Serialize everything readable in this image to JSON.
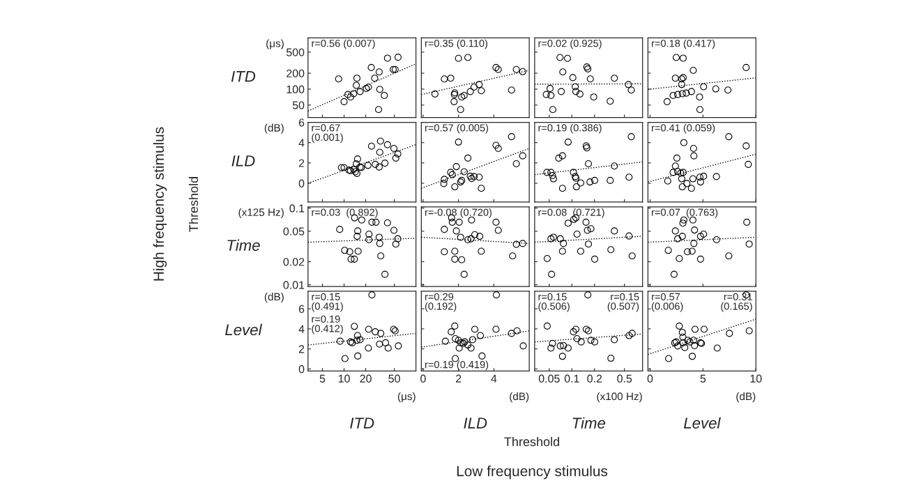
{
  "chart_data": [
    {
      "type": "scatter",
      "log": "xy",
      "tick_labels": "y",
      "ylabel": "ITD",
      "xlim": [
        3.15,
        100
      ],
      "xticks": [
        5,
        10,
        20,
        50
      ],
      "ylim": [
        29,
        930
      ],
      "yticks": [
        50,
        100,
        200,
        500
      ],
      "annotations": [
        "r=0.56 (0.007)",
        "(μs)"
      ],
      "series": [
        {
          "type": "scatter",
          "marker": "circle",
          "color": "#000000",
          "x": [
            8.4,
            10,
            11.3,
            12.3,
            13.6,
            15.1,
            14.8,
            16.7,
            20.4,
            21.8,
            23.9,
            26.7,
            30.8,
            31.4,
            36.3,
            30.2,
            40.2,
            56.4,
            48.3,
            51.4
          ],
          "values": [
            156,
            58,
            79,
            71,
            82,
            161,
            118,
            90,
            103,
            109,
            256,
            161,
            211,
            99,
            76,
            41,
            385,
            401,
            235,
            235
          ]
        },
        {
          "type": "line",
          "line_style": "dotted",
          "color": "#000000",
          "x": [
            3.15,
            100
          ],
          "values": [
            38.6,
            301
          ]
        }
      ]
    },
    {
      "type": "scatter",
      "log": "y",
      "tick_labels": false,
      "xlim": [
        -0.1,
        6
      ],
      "xticks": [
        0,
        2,
        4
      ],
      "ylim": [
        29,
        930
      ],
      "yticks": [
        50,
        100,
        200,
        500
      ],
      "annotations": [
        "r=0.35 (0.110)"
      ],
      "series": [
        {
          "type": "scatter",
          "marker": "circle",
          "color": "#000000",
          "x": [
            0.67,
            1.2,
            1.56,
            1.77,
            1.79,
            1.75,
            2.0,
            2.12,
            2.18,
            2.32,
            2.53,
            2.67,
            2.88,
            3.17,
            3.29,
            4.12,
            4.25,
            5.0,
            5.27,
            5.63
          ],
          "values": [
            81,
            156,
            161,
            79,
            85,
            58,
            381,
            41,
            71,
            76,
            396,
            90,
            109,
            122,
            93,
            256,
            235,
            96,
            235,
            214
          ]
        },
        {
          "type": "line",
          "line_style": "dotted",
          "color": "#000000",
          "x": [
            -0.1,
            6
          ],
          "values": [
            79,
            226
          ]
        }
      ]
    },
    {
      "type": "scatter",
      "log": "xy",
      "tick_labels": false,
      "xlim": [
        0.032,
        0.87
      ],
      "xticks": [
        0.05,
        0.1,
        0.2,
        0.5
      ],
      "ylim": [
        29,
        930
      ],
      "yticks": [
        50,
        100,
        200,
        500
      ],
      "annotations": [
        "r=0.02 (0.925)"
      ],
      "series": [
        {
          "type": "scatter",
          "marker": "circle",
          "color": "#000000",
          "x": [
            0.0695,
            0.0875,
            0.0758,
            0.103,
            0.158,
            0.163,
            0.176,
            0.0513,
            0.0527,
            0.0457,
            0.0723,
            0.111,
            0.113,
            0.128,
            0.195,
            0.323,
            0.367,
            0.564,
            0.616,
            0.0558
          ],
          "values": [
            396,
            381,
            211,
            165,
            262,
            241,
            156,
            103,
            76,
            79,
            90,
            111,
            90,
            81,
            71,
            59,
            161,
            122,
            96,
            41
          ]
        },
        {
          "type": "line",
          "line_style": "dotted",
          "color": "#000000",
          "x": [
            0.032,
            0.87
          ],
          "values": [
            124,
            126
          ]
        }
      ]
    },
    {
      "type": "scatter",
      "log": "y",
      "tick_labels": false,
      "xlim": [
        -0.2,
        10
      ],
      "xticks": [
        0,
        5,
        10
      ],
      "ylim": [
        29,
        930
      ],
      "yticks": [
        50,
        100,
        200,
        500
      ],
      "annotations": [
        "r=0.18 (0.417)"
      ],
      "series": [
        {
          "type": "scatter",
          "marker": "circle",
          "color": "#000000",
          "x": [
            2.47,
            3.13,
            4.08,
            2.39,
            2.99,
            3.13,
            2.99,
            1.61,
            2.18,
            2.61,
            3.05,
            3.42,
            3.91,
            4.68,
            5.06,
            4.71,
            6.21,
            7.36,
            9.08
          ],
          "values": [
            396,
            385,
            226,
            161,
            156,
            165,
            122,
            58,
            76,
            79,
            82,
            84,
            90,
            71,
            111,
            41,
            101,
            96,
            256
          ]
        },
        {
          "type": "line",
          "line_style": "dotted",
          "color": "#000000",
          "x": [
            -0.2,
            10
          ],
          "values": [
            99,
            163
          ]
        }
      ]
    },
    {
      "type": "scatter",
      "log": "x",
      "tick_labels": "y",
      "ylabel": "ILD",
      "xlim": [
        3.15,
        100
      ],
      "xticks": [
        5,
        10,
        20,
        50
      ],
      "ylim": [
        -1.85,
        6
      ],
      "yticks": [
        0,
        2,
        4,
        6
      ],
      "annotations": [
        "r=0.67\n(0.001)",
        "(dB)",
        "High frequency stimulus",
        "Threshold"
      ],
      "series": [
        {
          "type": "scatter",
          "marker": "circle",
          "color": "#000000",
          "x": [
            9.2,
            10,
            11.7,
            12.3,
            13.6,
            14.3,
            15.1,
            15.4,
            14.8,
            16.7,
            17.4,
            21.5,
            24.1,
            27.2,
            30.8,
            31.4,
            32.1,
            37.0,
            40.2,
            49.4,
            52.5,
            55.9
          ],
          "values": [
            1.54,
            1.54,
            1.29,
            1.23,
            1.38,
            1.13,
            0.97,
            2.39,
            1.92,
            1.6,
            1.54,
            1.76,
            3.65,
            1.86,
            1.6,
            3.05,
            4.15,
            1.98,
            3.8,
            3.43,
            2.48,
            2.89
          ]
        },
        {
          "type": "line",
          "line_style": "dotted",
          "color": "#000000",
          "x": [
            3.15,
            100
          ],
          "values": [
            0,
            3.8
          ]
        }
      ]
    },
    {
      "type": "scatter",
      "tick_labels": false,
      "xlim": [
        -0.1,
        6
      ],
      "xticks": [
        0,
        2,
        4
      ],
      "ylim": [
        -1.85,
        6
      ],
      "yticks": [
        0,
        2,
        4,
        6
      ],
      "annotations": [
        "r=0.57 (0.005)"
      ],
      "series": [
        {
          "type": "scatter",
          "marker": "circle",
          "color": "#000000",
          "x": [
            1.2,
            1.17,
            1.56,
            1.65,
            1.79,
            1.88,
            2.0,
            2.12,
            2.18,
            2.32,
            2.53,
            2.67,
            2.74,
            2.88,
            3.17,
            3.29,
            4.12,
            4.25,
            5.0,
            5.27,
            5.63
          ],
          "values": [
            0.38,
            -0.03,
            1.07,
            0.85,
            -0.35,
            1.64,
            4.06,
            0.13,
            0.28,
            1.13,
            2.48,
            0.69,
            0.47,
            0.66,
            0.6,
            -0.5,
            3.74,
            3.43,
            4.59,
            1.92,
            2.7
          ]
        },
        {
          "type": "line",
          "line_style": "dotted",
          "color": "#000000",
          "x": [
            -0.1,
            6
          ],
          "values": [
            -0.5,
            3.43
          ]
        }
      ]
    },
    {
      "type": "scatter",
      "log": "x",
      "tick_labels": false,
      "xlim": [
        0.032,
        0.87
      ],
      "xticks": [
        0.05,
        0.1,
        0.2,
        0.5
      ],
      "ylim": [
        -1.85,
        6
      ],
      "yticks": [
        0,
        2,
        4,
        6
      ],
      "annotations": [
        "r=0.19 (0.386)"
      ],
      "series": [
        {
          "type": "scatter",
          "marker": "circle",
          "color": "#000000",
          "x": [
            0.0466,
            0.0527,
            0.0553,
            0.057,
            0.0669,
            0.075,
            0.0892,
            0.105,
            0.111,
            0.113,
            0.115,
            0.131,
            0.155,
            0.158,
            0.166,
            0.174,
            0.201,
            0.323,
            0.367,
            0.575,
            0.616,
            0.075
          ],
          "values": [
            1.07,
            1.07,
            0.75,
            0.44,
            2.48,
            2.7,
            4.06,
            1.07,
            0.66,
            0.5,
            -0.35,
            0.03,
            3.68,
            3.49,
            1.92,
            0.13,
            0.28,
            0.28,
            1.7,
            0.6,
            4.59,
            -0.5
          ]
        },
        {
          "type": "line",
          "line_style": "dotted",
          "color": "#000000",
          "x": [
            0.032,
            0.87
          ],
          "values": [
            0.85,
            2.1
          ]
        }
      ]
    },
    {
      "type": "scatter",
      "tick_labels": false,
      "xlim": [
        -0.2,
        10
      ],
      "xticks": [
        0,
        5,
        10
      ],
      "ylim": [
        -1.85,
        6
      ],
      "yticks": [
        0,
        2,
        4,
        6
      ],
      "annotations": [
        "r=0.41 (0.059)"
      ],
      "series": [
        {
          "type": "scatter",
          "marker": "circle",
          "color": "#000000",
          "x": [
            1.67,
            2.39,
            2.53,
            2.18,
            2.61,
            2.9,
            3.13,
            3.19,
            2.99,
            3.05,
            3.48,
            3.91,
            4.05,
            4.11,
            4.14,
            4.71,
            5.06,
            4.77,
            6.27,
            7.44,
            9.08,
            9.28
          ],
          "values": [
            0.22,
            1.7,
            2.48,
            1.07,
            1.16,
            1.0,
            1.07,
            4.0,
            0.44,
            -0.35,
            -0.03,
            -0.5,
            0.44,
            3.43,
            2.7,
            0.6,
            0.69,
            0.13,
            0.66,
            4.59,
            3.68,
            1.86
          ]
        },
        {
          "type": "line",
          "line_style": "dotted",
          "color": "#000000",
          "x": [
            -0.2,
            10
          ],
          "values": [
            0.13,
            2.86
          ]
        }
      ]
    },
    {
      "type": "scatter",
      "log": "xy",
      "tick_labels": "y",
      "ylabel": "Time",
      "xlim": [
        3.15,
        100
      ],
      "xticks": [
        5,
        10,
        20,
        50
      ],
      "ylim": [
        0.0095,
        0.104
      ],
      "yticks": [
        0.01,
        0.02,
        0.05,
        0.1
      ],
      "annotations": [
        "r=0.03  (0.892)",
        "(x125 Hz)"
      ],
      "series": [
        {
          "type": "scatter",
          "marker": "circle",
          "color": "#000000",
          "x": [
            8.7,
            10.2,
            12.0,
            15.7,
            12.5,
            13.9,
            14.0,
            15.5,
            15.2,
            17.6,
            22.2,
            22.2,
            24.4,
            27.8,
            30.8,
            31.4,
            40.2,
            49.4,
            52.5,
            55.9,
            32.4,
            37.0
          ],
          "values": [
            0.0528,
            0.0281,
            0.027,
            0.0274,
            0.0216,
            0.0216,
            0.0747,
            0.0504,
            0.0429,
            0.07,
            0.0458,
            0.0387,
            0.0655,
            0.0655,
            0.0417,
            0.0346,
            0.0643,
            0.0513,
            0.034,
            0.0398,
            0.0238,
            0.0137
          ]
        },
        {
          "type": "line",
          "line_style": "dotted",
          "color": "#000000",
          "x": [
            3.15,
            100
          ],
          "values": [
            0.0359,
            0.0405
          ]
        }
      ]
    },
    {
      "type": "scatter",
      "log": "y",
      "tick_labels": false,
      "xlim": [
        -0.1,
        6
      ],
      "xticks": [
        0,
        2,
        4
      ],
      "ylim": [
        0.0095,
        0.104
      ],
      "yticks": [
        0.01,
        0.02,
        0.05,
        0.1
      ],
      "annotations": [
        "r=-0.08 (0.720)"
      ],
      "series": [
        {
          "type": "scatter",
          "marker": "circle",
          "color": "#000000",
          "x": [
            1.2,
            1.65,
            1.88,
            1.61,
            2.04,
            1.79,
            1.79,
            2.18,
            2.12,
            2.32,
            2.53,
            2.71,
            2.74,
            2.92,
            3.2,
            3.29,
            4.12,
            4.25,
            5.06,
            5.27,
            5.63,
            1.2
          ],
          "values": [
            0.0528,
            0.0655,
            0.0504,
            0.0747,
            0.0655,
            0.0274,
            0.0216,
            0.0212,
            0.0417,
            0.0137,
            0.0387,
            0.0398,
            0.07,
            0.045,
            0.0429,
            0.0274,
            0.0655,
            0.0513,
            0.0238,
            0.0337,
            0.0346,
            0.027
          ]
        },
        {
          "type": "line",
          "line_style": "dotted",
          "color": "#000000",
          "x": [
            -0.1,
            6
          ],
          "values": [
            0.0417,
            0.0346
          ]
        }
      ]
    },
    {
      "type": "scatter",
      "log": "xy",
      "tick_labels": false,
      "xlim": [
        0.032,
        0.87
      ],
      "xticks": [
        0.05,
        0.1,
        0.2,
        0.5
      ],
      "ylim": [
        0.0095,
        0.104
      ],
      "yticks": [
        0.01,
        0.02,
        0.05,
        0.1
      ],
      "annotations": [
        "r=0.08  (0.721)"
      ],
      "series": [
        {
          "type": "scatter",
          "marker": "circle",
          "color": "#000000",
          "x": [
            0.047,
            0.0537,
            0.0527,
            0.057,
            0.0702,
            0.0773,
            0.075,
            0.0892,
            0.106,
            0.113,
            0.117,
            0.131,
            0.154,
            0.161,
            0.166,
            0.179,
            0.201,
            0.33,
            0.367,
            0.575,
            0.632
          ],
          "values": [
            0.022,
            0.0137,
            0.0398,
            0.0417,
            0.0398,
            0.0346,
            0.0274,
            0.0637,
            0.0713,
            0.0747,
            0.0458,
            0.0274,
            0.0655,
            0.0513,
            0.034,
            0.0538,
            0.0216,
            0.0287,
            0.0504,
            0.0433,
            0.0238
          ]
        },
        {
          "type": "line",
          "line_style": "dotted",
          "color": "#000000",
          "x": [
            0.032,
            0.87
          ],
          "values": [
            0.0359,
            0.043
          ]
        }
      ]
    },
    {
      "type": "scatter",
      "log": "y",
      "tick_labels": false,
      "xlim": [
        -0.2,
        10
      ],
      "xticks": [
        0,
        5,
        10
      ],
      "ylim": [
        0.0095,
        0.104
      ],
      "yticks": [
        0.01,
        0.02,
        0.05,
        0.1
      ],
      "annotations": [
        "r=0.07  (0.763)"
      ],
      "series": [
        {
          "type": "scatter",
          "marker": "circle",
          "color": "#000000",
          "x": [
            1.72,
            2.39,
            2.76,
            2.61,
            3.05,
            3.1,
            3.19,
            3.53,
            3.97,
            4.05,
            4.14,
            4.2,
            4.77,
            5.06,
            4.77,
            2.27,
            6.29,
            7.44,
            9.14,
            9.37
          ],
          "values": [
            0.0281,
            0.0504,
            0.022,
            0.0398,
            0.0429,
            0.0637,
            0.07,
            0.027,
            0.0274,
            0.07,
            0.0346,
            0.0518,
            0.0429,
            0.0458,
            0.0216,
            0.0137,
            0.0387,
            0.0238,
            0.0655,
            0.034
          ]
        },
        {
          "type": "line",
          "line_style": "dotted",
          "color": "#000000",
          "x": [
            -0.2,
            10
          ],
          "values": [
            0.0359,
            0.0417
          ]
        }
      ]
    },
    {
      "type": "scatter",
      "log": "x",
      "ylabel": "Level",
      "xlabel": "ITD",
      "xlim": [
        3.15,
        100
      ],
      "xticks": [
        5,
        10,
        20,
        50
      ],
      "ylim": [
        -0.2,
        7.75
      ],
      "yticks": [
        0,
        2,
        4,
        6
      ],
      "annotations": [
        "r=0.15\n(0.491)",
        "r=0.19\n(0.412)",
        "(dB)",
        "(μs)"
      ],
      "series": [
        {
          "type": "scatter",
          "marker": "circle",
          "color": "#000000",
          "x": [
            10.3,
            8.8,
            12.3,
            13.0,
            13.9,
            15.4,
            15.1,
            16.7,
            15.5,
            21.8,
            22.0,
            27.2,
            32.4,
            31.1,
            37.8,
            41.1,
            48.9,
            51.4,
            56.9,
            24.4
          ],
          "values": [
            1.04,
            2.77,
            2.7,
            2.61,
            4.25,
            3.33,
            2.86,
            2.92,
            1.29,
            2.08,
            3.96,
            3.71,
            3.55,
            2.48,
            2.61,
            2.08,
            3.96,
            3.8,
            2.3,
            7.39
          ]
        },
        {
          "type": "line",
          "line_style": "dotted",
          "color": "#000000",
          "x": [
            3.15,
            100
          ],
          "values": [
            2.39,
            3.55
          ]
        }
      ]
    },
    {
      "type": "scatter",
      "tick_labels": "x",
      "xlabel": "ILD",
      "xlim": [
        -0.1,
        6
      ],
      "xticks": [
        0,
        2,
        4
      ],
      "ylim": [
        -0.2,
        7.75
      ],
      "yticks": [
        0,
        2,
        4,
        6
      ],
      "annotations": [
        "r=0.29\n(0.192)",
        "r=0.19 (0.419)",
        "(dB)",
        "Threshold",
        "Low frequency stimulus"
      ],
      "series": [
        {
          "type": "scatter",
          "marker": "circle",
          "color": "#000000",
          "x": [
            1.26,
            1.59,
            1.79,
            1.82,
            2.0,
            2.04,
            2.14,
            2.27,
            2.35,
            2.53,
            2.71,
            2.8,
            2.92,
            3.24,
            3.33,
            1.82,
            4.12,
            4.14,
            5.0,
            5.31,
            5.66
          ],
          "values": [
            2.77,
            3.71,
            4.28,
            3.02,
            2.86,
            2.08,
            2.61,
            2.55,
            2.7,
            2.39,
            2.08,
            2.92,
            3.96,
            3.33,
            1.29,
            1.04,
            3.96,
            7.39,
            3.55,
            3.8,
            2.3
          ]
        },
        {
          "type": "line",
          "line_style": "dotted",
          "color": "#000000",
          "x": [
            -0.1,
            6
          ],
          "values": [
            2.17,
            3.8
          ]
        }
      ]
    },
    {
      "type": "scatter",
      "log": "x",
      "tick_labels": "x",
      "xlabel": "Time",
      "xlim": [
        0.032,
        0.87
      ],
      "xticks": [
        0.05,
        0.1,
        0.2,
        0.5
      ],
      "ylim": [
        -0.2,
        7.75
      ],
      "yticks": [
        0,
        2,
        4,
        6
      ],
      "annotations": [
        "r=0.15\n(0.506)",
        "r=0.15\n(0.507)",
        "(x100 Hz)"
      ],
      "series": [
        {
          "type": "scatter",
          "marker": "circle",
          "color": "#000000",
          "x": [
            0.047,
            0.0553,
            0.0527,
            0.0702,
            0.0773,
            0.075,
            0.0892,
            0.105,
            0.113,
            0.117,
            0.133,
            0.155,
            0.166,
            0.163,
            0.179,
            0.201,
            0.367,
            0.33,
            0.575,
            0.632
          ],
          "values": [
            4.28,
            2.55,
            2.08,
            2.3,
            2.33,
            1.26,
            2.08,
            3.71,
            3.96,
            3.02,
            2.7,
            3.96,
            3.8,
            7.39,
            2.86,
            2.7,
            2.92,
            1.07,
            3.33,
            3.55
          ]
        },
        {
          "type": "line",
          "line_style": "dotted",
          "color": "#000000",
          "x": [
            0.032,
            0.87
          ],
          "values": [
            2.7,
            3.49
          ]
        }
      ]
    },
    {
      "type": "scatter",
      "tick_labels": "x",
      "xlabel": "Level",
      "xlim": [
        -0.2,
        10
      ],
      "xticks": [
        0,
        5,
        10
      ],
      "ylim": [
        -0.2,
        7.75
      ],
      "yticks": [
        0,
        2,
        4,
        6
      ],
      "annotations": [
        "r=0.57\n(0.006)",
        "r=0.31\n(0.165)",
        "(dB)"
      ],
      "series": [
        {
          "type": "scatter",
          "marker": "circle",
          "color": "#000000",
          "x": [
            1.75,
            2.33,
            2.47,
            2.61,
            2.76,
            3.05,
            3.1,
            3.13,
            3.28,
            3.56,
            3.76,
            3.99,
            4.11,
            4.2,
            4.25,
            4.77,
            4.86,
            5.11,
            6.35,
            7.5,
            9.08,
            9.37
          ],
          "values": [
            1.04,
            2.61,
            2.7,
            2.3,
            4.28,
            3.65,
            3.18,
            2.61,
            2.14,
            2.86,
            2.7,
            1.26,
            2.86,
            2.33,
            3.96,
            2.61,
            2.55,
            3.96,
            2.08,
            3.55,
            7.39,
            3.8
          ]
        },
        {
          "type": "line",
          "line_style": "dotted",
          "color": "#000000",
          "x": [
            -0.2,
            10
          ],
          "values": [
            1.45,
            4.97
          ]
        }
      ]
    }
  ]
}
